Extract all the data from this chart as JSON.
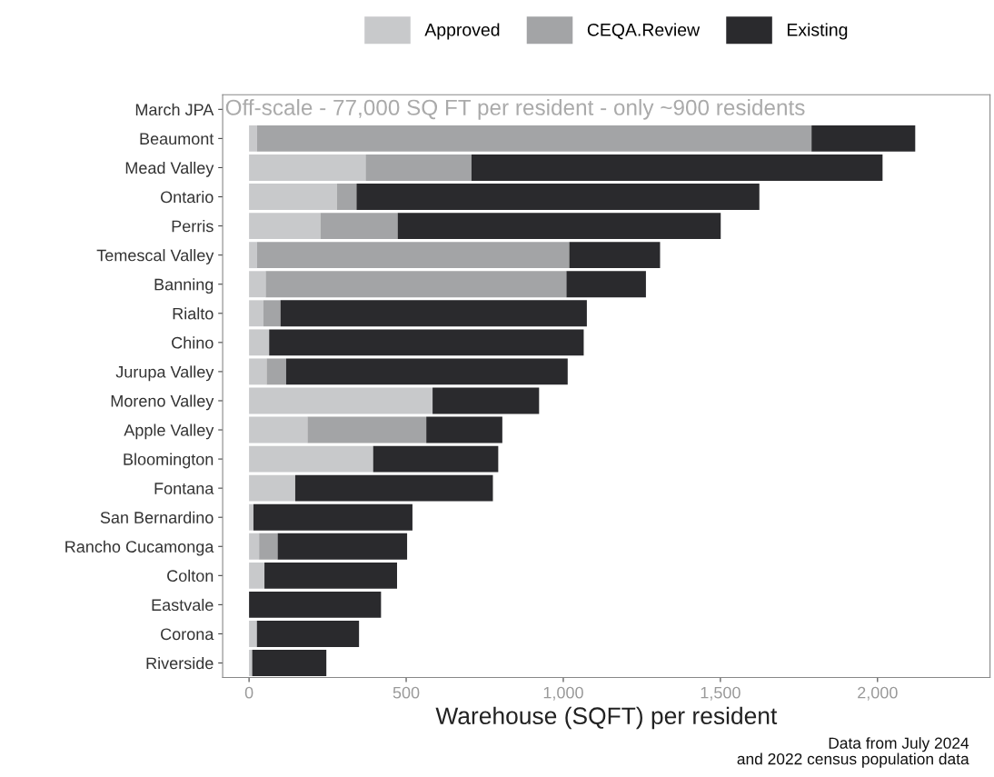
{
  "chart_data": {
    "type": "bar",
    "orientation": "horizontal",
    "stacked": true,
    "xlabel": "Warehouse (SQFT) per resident",
    "categories": [
      "March JPA",
      "Beaumont",
      "Mead Valley",
      "Ontario",
      "Perris",
      "Temescal Valley",
      "Banning",
      "Rialto",
      "Chino",
      "Jurupa Valley",
      "Moreno Valley",
      "Apple Valley",
      "Bloomington",
      "Fontana",
      "San Bernardino",
      "Rancho Cucamonga",
      "Colton",
      "Eastvale",
      "Corona",
      "Riverside"
    ],
    "series": [
      {
        "name": "Approved",
        "color": "#c8c9cb",
        "values": [
          null,
          25,
          371,
          280,
          227,
          25,
          53,
          46,
          64,
          56,
          584,
          186,
          395,
          147,
          14,
          32,
          49,
          null,
          25,
          10
        ]
      },
      {
        "name": "CEQA.Review",
        "color": "#a3a4a6",
        "values": [
          null,
          1765,
          337,
          62,
          246,
          994,
          957,
          54,
          0,
          62,
          0,
          378,
          0,
          0,
          0,
          59,
          0,
          0,
          0,
          0
        ]
      },
      {
        "name": "Existing",
        "color": "#2a2a2d",
        "values": [
          null,
          330,
          1308,
          1282,
          1028,
          289,
          253,
          975,
          1001,
          896,
          339,
          242,
          398,
          629,
          506,
          412,
          422,
          420,
          325,
          236
        ]
      }
    ],
    "xlim": [
      -84,
      2358
    ],
    "xticks": [
      {
        "value": 0,
        "label": "0"
      },
      {
        "value": 500,
        "label": "500"
      },
      {
        "value": 1000,
        "label": "1,000"
      },
      {
        "value": 1500,
        "label": "1,500"
      },
      {
        "value": 2000,
        "label": "2,000"
      }
    ],
    "grid": false,
    "legend": "top",
    "annotations": [
      "Off-scale - 77,000 SQ FT per resident - only ~900 residents",
      "Data from July 2024\nand 2022 census population data"
    ]
  }
}
